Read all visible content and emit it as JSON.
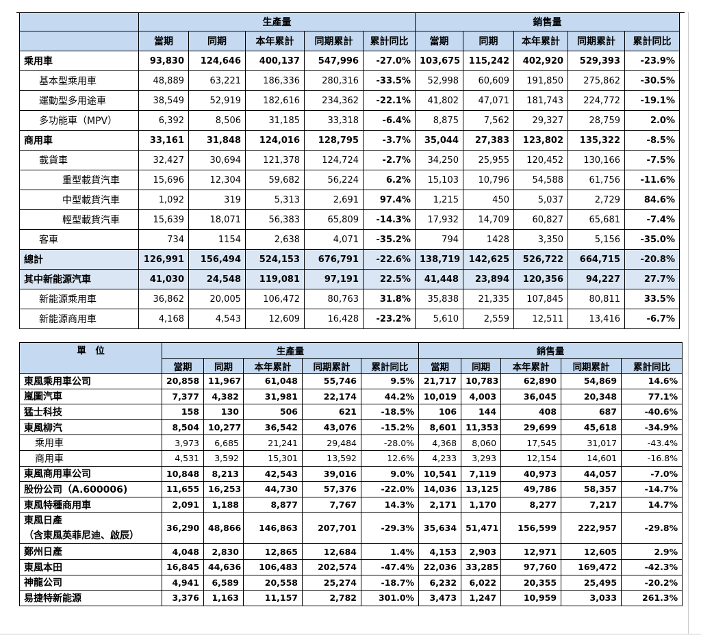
{
  "tables": {
    "vehicle_type": {
      "group_headers": [
        "生產量",
        "銷售量"
      ],
      "col_headers": [
        "當期",
        "同期",
        "本年累計",
        "同期累計",
        "累計同比",
        "當期",
        "同期",
        "本年累計",
        "同期累計",
        "累計同比"
      ],
      "rows": [
        {
          "label": "乘用車",
          "values": [
            "93,830",
            "124,646",
            "400,137",
            "547,996",
            "-27.0%",
            "103,675",
            "115,242",
            "402,920",
            "529,393",
            "-23.9%"
          ]
        },
        {
          "label": "基本型乘用車",
          "values": [
            "48,889",
            "63,221",
            "186,336",
            "280,316",
            "-33.5%",
            "52,998",
            "60,609",
            "191,850",
            "275,862",
            "-30.5%"
          ]
        },
        {
          "label": "運動型多用途車",
          "values": [
            "38,549",
            "52,919",
            "182,616",
            "234,362",
            "-22.1%",
            "41,802",
            "47,071",
            "181,743",
            "224,772",
            "-19.1%"
          ]
        },
        {
          "label": "多功能車（MPV）",
          "values": [
            "6,392",
            "8,506",
            "31,185",
            "33,318",
            "-6.4%",
            "8,875",
            "7,562",
            "29,327",
            "28,759",
            "2.0%"
          ]
        },
        {
          "label": "商用車",
          "values": [
            "33,161",
            "31,848",
            "124,016",
            "128,795",
            "-3.7%",
            "35,044",
            "27,383",
            "123,802",
            "135,322",
            "-8.5%"
          ]
        },
        {
          "label": "載貨車",
          "values": [
            "32,427",
            "30,694",
            "121,378",
            "124,724",
            "-2.7%",
            "34,250",
            "25,955",
            "120,452",
            "130,166",
            "-7.5%"
          ]
        },
        {
          "label": "重型載貨汽車",
          "values": [
            "15,696",
            "12,304",
            "59,682",
            "56,224",
            "6.2%",
            "15,103",
            "10,796",
            "54,588",
            "61,756",
            "-11.6%"
          ]
        },
        {
          "label": "中型載貨汽車",
          "values": [
            "1,092",
            "319",
            "5,313",
            "2,691",
            "97.4%",
            "1,215",
            "450",
            "5,037",
            "2,729",
            "84.6%"
          ]
        },
        {
          "label": "輕型載貨汽車",
          "values": [
            "15,639",
            "18,071",
            "56,383",
            "65,809",
            "-14.3%",
            "17,932",
            "14,709",
            "60,827",
            "65,681",
            "-7.4%"
          ]
        },
        {
          "label": "客車",
          "values": [
            "734",
            "1154",
            "2,638",
            "4,071",
            "-35.2%",
            "794",
            "1428",
            "3,350",
            "5,156",
            "-35.0%"
          ]
        },
        {
          "label": "總計",
          "values": [
            "126,991",
            "156,494",
            "524,153",
            "676,791",
            "-22.6%",
            "138,719",
            "142,625",
            "526,722",
            "664,715",
            "-20.8%"
          ]
        },
        {
          "label": "其中新能源汽車",
          "values": [
            "41,030",
            "24,548",
            "119,081",
            "97,191",
            "22.5%",
            "41,448",
            "23,894",
            "120,356",
            "94,227",
            "27.7%"
          ]
        },
        {
          "label": "新能源乘用車",
          "values": [
            "36,862",
            "20,005",
            "106,472",
            "80,763",
            "31.8%",
            "35,838",
            "21,335",
            "107,845",
            "80,811",
            "33.5%"
          ]
        },
        {
          "label": "新能源商用車",
          "values": [
            "4,168",
            "4,543",
            "12,609",
            "16,428",
            "-23.2%",
            "5,610",
            "2,559",
            "12,511",
            "13,416",
            "-6.7%"
          ]
        }
      ]
    },
    "by_unit": {
      "unit_header": "單　位",
      "group_headers": [
        "生產量",
        "銷售量"
      ],
      "col_headers": [
        "當期",
        "同期",
        "本年累計",
        "同期累計",
        "累計同比",
        "當期",
        "同期",
        "本年累計",
        "同期累計",
        "累計同比"
      ],
      "rows": [
        {
          "label": "東風乘用車公司",
          "values": [
            "20,858",
            "11,967",
            "61,048",
            "55,746",
            "9.5%",
            "21,717",
            "10,783",
            "62,890",
            "54,869",
            "14.6%"
          ]
        },
        {
          "label": "嵐圖汽車",
          "values": [
            "7,377",
            "4,382",
            "31,981",
            "22,174",
            "44.2%",
            "10,019",
            "4,003",
            "36,045",
            "20,348",
            "77.1%"
          ]
        },
        {
          "label": "猛士科技",
          "values": [
            "158",
            "130",
            "506",
            "621",
            "-18.5%",
            "106",
            "144",
            "408",
            "687",
            "-40.6%"
          ]
        },
        {
          "label": "東風柳汽",
          "values": [
            "8,504",
            "10,277",
            "36,542",
            "43,076",
            "-15.2%",
            "8,601",
            "11,353",
            "29,699",
            "45,618",
            "-34.9%"
          ]
        },
        {
          "label": "乘用車",
          "values": [
            "3,973",
            "6,685",
            "21,241",
            "29,484",
            "-28.0%",
            "4,368",
            "8,060",
            "17,545",
            "31,017",
            "-43.4%"
          ]
        },
        {
          "label": "商用車",
          "values": [
            "4,531",
            "3,592",
            "15,301",
            "13,592",
            "12.6%",
            "4,233",
            "3,293",
            "12,154",
            "14,601",
            "-16.8%"
          ]
        },
        {
          "label": "東風商用車公司",
          "values": [
            "10,848",
            "8,213",
            "42,543",
            "39,016",
            "9.0%",
            "10,541",
            "7,119",
            "40,973",
            "44,057",
            "-7.0%"
          ]
        },
        {
          "label": "股份公司（A.600006)",
          "values": [
            "11,655",
            "16,253",
            "44,730",
            "57,376",
            "-22.0%",
            "14,036",
            "13,125",
            "49,786",
            "58,357",
            "-14.7%"
          ]
        },
        {
          "label": "東風特種商用車",
          "values": [
            "2,091",
            "1,188",
            "8,877",
            "7,767",
            "14.3%",
            "2,171",
            "1,170",
            "8,277",
            "7,217",
            "14.7%"
          ]
        },
        {
          "label": "東風日產",
          "label2": "（含東風英菲尼迪、啟辰）",
          "values": [
            "36,290",
            "48,866",
            "146,863",
            "207,701",
            "-29.3%",
            "35,634",
            "51,471",
            "156,599",
            "222,957",
            "-29.8%"
          ]
        },
        {
          "label": "鄭州日產",
          "values": [
            "4,048",
            "2,830",
            "12,865",
            "12,684",
            "1.4%",
            "4,153",
            "2,903",
            "12,971",
            "12,605",
            "2.9%"
          ]
        },
        {
          "label": "東風本田",
          "values": [
            "16,845",
            "44,636",
            "106,483",
            "202,574",
            "-47.4%",
            "22,036",
            "33,285",
            "97,760",
            "169,472",
            "-42.3%"
          ]
        },
        {
          "label": "神龍公司",
          "values": [
            "4,941",
            "6,589",
            "20,558",
            "25,274",
            "-18.7%",
            "6,232",
            "6,022",
            "20,355",
            "25,495",
            "-20.2%"
          ]
        },
        {
          "label": "易捷特新能源",
          "values": [
            "3,376",
            "1,163",
            "11,157",
            "2,782",
            "301.0%",
            "3,473",
            "1,247",
            "10,959",
            "3,033",
            "261.3%"
          ]
        }
      ]
    }
  },
  "colors": {
    "header_bg": "#c5d9f1",
    "highlight_row_bg": "#dbe6f4"
  }
}
